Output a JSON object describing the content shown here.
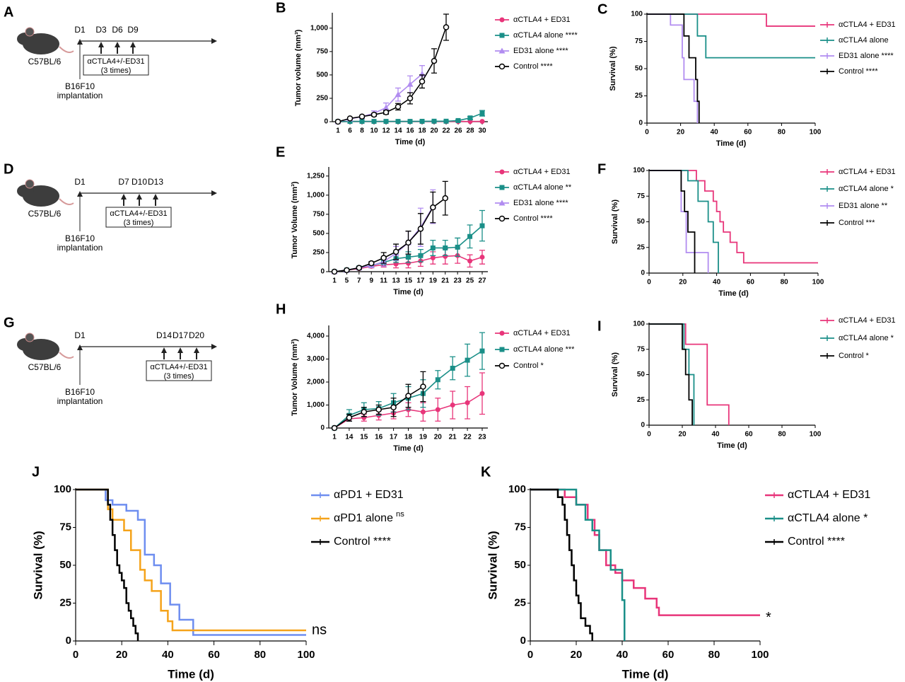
{
  "chart_data": [
    {
      "type": "schedule",
      "label": "A",
      "strain": "C57BL/6",
      "start": "D1",
      "doses": [
        "D3",
        "D6",
        "D9"
      ],
      "treatment": "αCTLA4+/-ED31",
      "times": "(3 times)",
      "implant": [
        "B16F10",
        "implantation"
      ]
    },
    {
      "type": "line",
      "label": "B",
      "ylabel": "Tumor volume (mm³)",
      "xlabel": "Time (d)",
      "categories": [
        "1",
        "6",
        "8",
        "10",
        "12",
        "14",
        "16",
        "18",
        "20",
        "22",
        "26",
        "28",
        "30"
      ],
      "ylim": [
        0,
        1150
      ],
      "yticks": [
        0,
        250,
        500,
        750,
        {
          "value": 1000,
          "label": "1,000"
        }
      ],
      "series": [
        {
          "name": "αCTLA4 + ED31",
          "color": "#e8357a",
          "marker": "circle",
          "values": [
            0,
            2,
            2,
            2,
            2,
            2,
            2,
            2,
            2,
            2,
            2,
            2,
            3
          ]
        },
        {
          "name": "αCTLA4 alone ****",
          "color": "#1a8f88",
          "marker": "square",
          "values": [
            0,
            3,
            3,
            3,
            3,
            3,
            3,
            4,
            5,
            5,
            12,
            40,
            90
          ],
          "errors": [
            0,
            2,
            2,
            2,
            2,
            2,
            2,
            2,
            3,
            3,
            8,
            15,
            30
          ]
        },
        {
          "name": "ED31 alone ****",
          "color": "#b18cf0",
          "marker": "triangle",
          "values": [
            0,
            30,
            55,
            90,
            150,
            290,
            400,
            510,
            null,
            null,
            null,
            null,
            null
          ],
          "errors": [
            0,
            8,
            12,
            25,
            50,
            70,
            90,
            90,
            null,
            null,
            null,
            null,
            null
          ]
        },
        {
          "name": "Control ****",
          "color": "#000000",
          "marker": "open-circle",
          "values": [
            0,
            35,
            55,
            75,
            100,
            160,
            250,
            430,
            650,
            1010,
            null,
            null,
            null
          ],
          "errors": [
            0,
            8,
            10,
            15,
            20,
            35,
            60,
            70,
            130,
            140,
            null,
            null,
            null
          ]
        }
      ]
    },
    {
      "type": "step",
      "label": "C",
      "ylabel": "Survival (%)",
      "xlabel": "Time (d)",
      "xlim": [
        0,
        100
      ],
      "xticks": [
        0,
        20,
        40,
        60,
        80,
        100
      ],
      "ylim": [
        0,
        100
      ],
      "yticks": [
        0,
        25,
        50,
        75,
        100
      ],
      "series": [
        {
          "name": "αCTLA4 + ED31",
          "color": "#e8357a",
          "x": [
            0,
            71,
            100
          ],
          "values": [
            100,
            89,
            89
          ]
        },
        {
          "name": "αCTLA4 alone",
          "color": "#1a8f88",
          "x": [
            0,
            30,
            35,
            100
          ],
          "values": [
            100,
            80,
            60,
            60
          ]
        },
        {
          "name": "ED31 alone ****",
          "color": "#b18cf0",
          "x": [
            0,
            14,
            21,
            22,
            28,
            30
          ],
          "values": [
            100,
            90,
            60,
            40,
            20,
            0
          ]
        },
        {
          "name": "Control ****",
          "color": "#000000",
          "x": [
            0,
            22,
            25,
            29,
            30,
            31
          ],
          "values": [
            100,
            80,
            60,
            40,
            20,
            0
          ]
        }
      ]
    },
    {
      "type": "schedule",
      "label": "D",
      "strain": "C57BL/6",
      "start": "D1",
      "doses": [
        "D7",
        "D10",
        "D13"
      ],
      "treatment": "αCTLA4+/-ED31",
      "times": "(3 times)",
      "implant": [
        "B16F10",
        "implantation"
      ]
    },
    {
      "type": "line",
      "label": "E",
      "ylabel": "Tumor Volume (mm³)",
      "xlabel": "Time (d)",
      "categories": [
        "1",
        "5",
        "7",
        "9",
        "11",
        "13",
        "15",
        "17",
        "19",
        "21",
        "23",
        "25",
        "27"
      ],
      "ylim": [
        0,
        1350
      ],
      "yticks": [
        0,
        250,
        500,
        750,
        {
          "value": 1000,
          "label": "1,000"
        },
        {
          "value": 1250,
          "label": "1,250"
        }
      ],
      "series": [
        {
          "name": "αCTLA4 + ED31",
          "color": "#e8357a",
          "marker": "circle",
          "values": [
            0,
            20,
            40,
            70,
            90,
            100,
            110,
            140,
            180,
            200,
            210,
            140,
            190
          ],
          "errors": [
            0,
            10,
            15,
            20,
            30,
            50,
            60,
            70,
            80,
            100,
            100,
            80,
            90
          ]
        },
        {
          "name": "αCTLA4 alone **",
          "color": "#1a8f88",
          "marker": "square",
          "values": [
            0,
            20,
            50,
            80,
            120,
            170,
            190,
            210,
            310,
            310,
            320,
            460,
            600
          ],
          "errors": [
            0,
            10,
            15,
            20,
            30,
            50,
            70,
            80,
            100,
            100,
            120,
            150,
            200
          ]
        },
        {
          "name": "ED31 alone ****",
          "color": "#b18cf0",
          "marker": "triangle",
          "values": [
            0,
            20,
            50,
            80,
            130,
            240,
            380,
            580,
            850,
            null,
            null,
            null,
            null
          ],
          "errors": [
            0,
            10,
            15,
            20,
            60,
            90,
            150,
            250,
            220,
            null,
            null,
            null,
            null
          ]
        },
        {
          "name": "Control ****",
          "color": "#000000",
          "marker": "open-circle",
          "values": [
            0,
            20,
            50,
            110,
            180,
            260,
            380,
            560,
            840,
            960,
            null,
            null,
            null
          ],
          "errors": [
            0,
            10,
            15,
            20,
            70,
            100,
            150,
            200,
            200,
            220,
            null,
            null,
            null
          ]
        }
      ]
    },
    {
      "type": "step",
      "label": "F",
      "ylabel": "Survival (%)",
      "xlabel": "Time (d)",
      "xlim": [
        0,
        100
      ],
      "xticks": [
        0,
        20,
        40,
        60,
        80,
        100
      ],
      "ylim": [
        0,
        100
      ],
      "yticks": [
        0,
        25,
        50,
        75,
        100
      ],
      "series": [
        {
          "name": "αCTLA4 + ED31",
          "color": "#e8357a",
          "x": [
            0,
            28,
            33,
            38,
            40,
            42,
            44,
            48,
            52,
            56,
            100
          ],
          "values": [
            100,
            90,
            80,
            70,
            60,
            50,
            40,
            30,
            20,
            10,
            10
          ]
        },
        {
          "name": "αCTLA4 alone *",
          "color": "#1a8f88",
          "x": [
            0,
            23,
            29,
            35,
            38,
            41
          ],
          "values": [
            100,
            90,
            70,
            50,
            30,
            0
          ]
        },
        {
          "name": "ED31 alone **",
          "color": "#b18cf0",
          "x": [
            0,
            19,
            22,
            35
          ],
          "values": [
            100,
            60,
            20,
            0
          ]
        },
        {
          "name": "Control ***",
          "color": "#000000",
          "x": [
            0,
            19,
            21,
            23,
            27
          ],
          "values": [
            100,
            80,
            60,
            40,
            0
          ]
        }
      ]
    },
    {
      "type": "schedule",
      "label": "G",
      "strain": "C57BL/6",
      "start": "D1",
      "doses": [
        "D14",
        "D17",
        "D20"
      ],
      "treatment": "αCTLA4+/-ED31",
      "times": "(3 times)",
      "implant": [
        "B16F10",
        "implantation"
      ]
    },
    {
      "type": "line",
      "label": "H",
      "ylabel": "Tumor Volume (mm³)",
      "xlabel": "Time (d)",
      "categories": [
        "1",
        "14",
        "15",
        "16",
        "17",
        "18",
        "19",
        "20",
        "21",
        "22",
        "23"
      ],
      "ylim": [
        0,
        4400
      ],
      "yticks": [
        0,
        {
          "value": 1000,
          "label": "1,000"
        },
        {
          "value": 2000,
          "label": "2,000"
        },
        {
          "value": 3000,
          "label": "3,000"
        },
        {
          "value": 4000,
          "label": "4,000"
        }
      ],
      "series": [
        {
          "name": "αCTLA4 + ED31",
          "color": "#e8357a",
          "marker": "circle",
          "values": [
            0,
            400,
            450,
            550,
            650,
            800,
            700,
            800,
            1000,
            1100,
            1500
          ],
          "errors": [
            0,
            100,
            150,
            200,
            250,
            300,
            400,
            500,
            600,
            700,
            900
          ]
        },
        {
          "name": "αCTLA4 alone ***",
          "color": "#1a8f88",
          "marker": "square",
          "values": [
            0,
            550,
            800,
            850,
            1100,
            1300,
            1500,
            2100,
            2600,
            2950,
            3350
          ],
          "errors": [
            0,
            250,
            300,
            300,
            400,
            500,
            600,
            400,
            500,
            700,
            800
          ]
        },
        {
          "name": "Control *",
          "color": "#000000",
          "marker": "open-circle",
          "values": [
            0,
            450,
            700,
            800,
            900,
            1400,
            1800,
            null,
            null,
            null,
            null
          ],
          "errors": [
            0,
            150,
            200,
            200,
            400,
            500,
            650,
            null,
            null,
            null,
            null
          ]
        }
      ]
    },
    {
      "type": "step",
      "label": "I",
      "ylabel": "Survival (%)",
      "xlabel": "Time (d)",
      "xlim": [
        0,
        100
      ],
      "xticks": [
        0,
        20,
        40,
        60,
        80,
        100
      ],
      "ylim": [
        0,
        100
      ],
      "yticks": [
        0,
        25,
        50,
        75,
        100
      ],
      "series": [
        {
          "name": "αCTLA4 + ED31",
          "color": "#e8357a",
          "x": [
            0,
            22,
            35,
            48
          ],
          "values": [
            100,
            80,
            20,
            0
          ]
        },
        {
          "name": "αCTLA4 alone *",
          "color": "#1a8f88",
          "x": [
            0,
            21,
            24,
            27
          ],
          "values": [
            100,
            75,
            50,
            0
          ]
        },
        {
          "name": "Control *",
          "color": "#000000",
          "x": [
            0,
            20,
            22,
            24,
            26
          ],
          "values": [
            100,
            75,
            50,
            25,
            0
          ]
        }
      ]
    },
    {
      "type": "step",
      "label": "J",
      "ylabel": "Survival (%)",
      "xlabel": "Time (d)",
      "annotation": "ns",
      "xlim": [
        0,
        100
      ],
      "xticks": [
        0,
        20,
        40,
        60,
        80,
        100
      ],
      "ylim": [
        0,
        100
      ],
      "yticks": [
        0,
        25,
        50,
        75,
        100
      ],
      "series": [
        {
          "name": "αPD1 + ED31",
          "color": "#6e8ef0",
          "x": [
            0,
            13,
            16,
            22,
            27,
            30,
            34,
            37,
            41,
            45,
            51,
            100
          ],
          "values": [
            100,
            93,
            90,
            86,
            80,
            57,
            50,
            38,
            24,
            14,
            4,
            4
          ]
        },
        {
          "name": "αPD1 alone",
          "note": "ns",
          "color": "#f5a31a",
          "x": [
            0,
            14,
            16,
            21,
            24,
            28,
            30,
            33,
            37,
            40,
            42,
            100
          ],
          "values": [
            100,
            87,
            80,
            73,
            60,
            47,
            40,
            33,
            20,
            13,
            7,
            7
          ]
        },
        {
          "name": "Control ****",
          "color": "#000000",
          "x": [
            0,
            14,
            15,
            16,
            17,
            18,
            19,
            20,
            21,
            22,
            23,
            24,
            25,
            26,
            27
          ],
          "values": [
            100,
            90,
            80,
            70,
            60,
            50,
            45,
            40,
            35,
            25,
            20,
            15,
            10,
            5,
            0
          ]
        }
      ]
    },
    {
      "type": "step",
      "label": "K",
      "ylabel": "Survival (%)",
      "xlabel": "Time (d)",
      "annotation": "*",
      "xlim": [
        0,
        100
      ],
      "xticks": [
        0,
        20,
        40,
        60,
        80,
        100
      ],
      "ylim": [
        0,
        100
      ],
      "yticks": [
        0,
        25,
        50,
        75,
        100
      ],
      "series": [
        {
          "name": "αCTLA4 + ED31",
          "color": "#e8357a",
          "x": [
            0,
            15,
            20,
            25,
            28,
            30,
            33,
            37,
            40,
            45,
            50,
            55,
            56,
            100
          ],
          "values": [
            100,
            95,
            90,
            80,
            70,
            60,
            50,
            45,
            40,
            35,
            28,
            22,
            17,
            17
          ]
        },
        {
          "name": "αCTLA4 alone *",
          "color": "#1a8f88",
          "x": [
            0,
            20,
            24,
            27,
            30,
            35,
            40,
            41
          ],
          "values": [
            100,
            90,
            80,
            73,
            60,
            47,
            27,
            0
          ]
        },
        {
          "name": "Control ****",
          "color": "#000000",
          "x": [
            0,
            12,
            14,
            15,
            16,
            17,
            18,
            19,
            20,
            21,
            22,
            24,
            26,
            27
          ],
          "values": [
            100,
            95,
            90,
            80,
            70,
            60,
            50,
            40,
            30,
            25,
            15,
            10,
            5,
            0
          ]
        }
      ]
    }
  ]
}
